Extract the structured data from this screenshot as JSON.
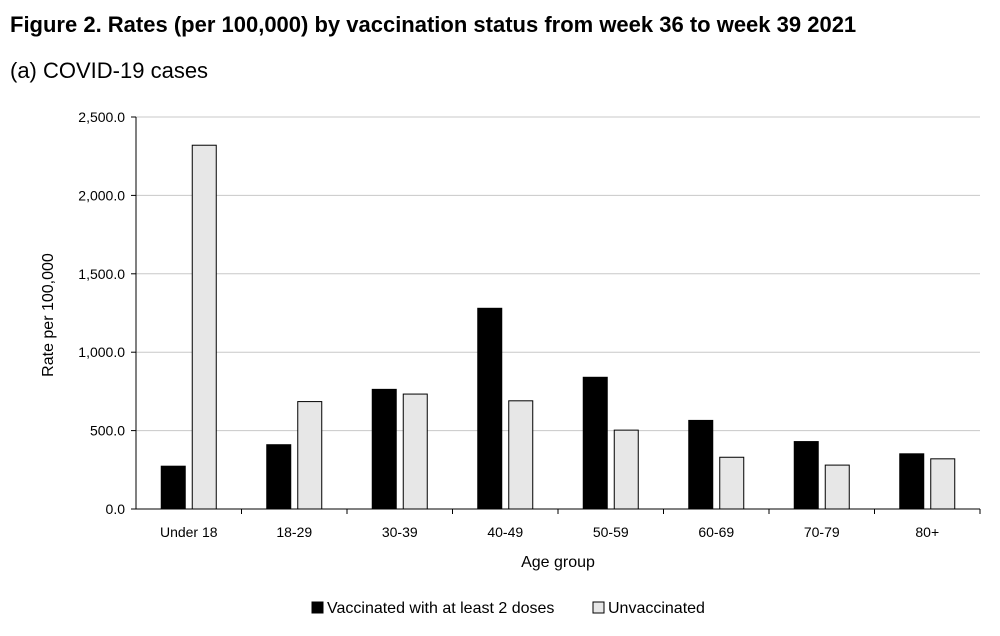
{
  "figure": {
    "title": "Figure 2. Rates (per 100,000) by vaccination status from week 36 to week 39 2021",
    "subtitle": "(a) COVID-19 cases"
  },
  "chart_data": {
    "type": "bar",
    "title": "Figure 2. Rates (per 100,000) by vaccination status from week 36 to week 39 2021",
    "subtitle": "(a) COVID-19 cases",
    "xlabel": "Age group",
    "ylabel": "Rate per 100,000",
    "ylim": [
      0,
      2500
    ],
    "yticks": [
      0,
      500,
      1000,
      1500,
      2000,
      2500
    ],
    "ytick_labels": [
      "0.0",
      "500.0",
      "1,000.0",
      "1,500.0",
      "2,000.0",
      "2,500.0"
    ],
    "grid": true,
    "legend_position": "bottom",
    "categories": [
      "Under 18",
      "18-29",
      "30-39",
      "40-49",
      "50-59",
      "60-69",
      "70-79",
      "80+"
    ],
    "series": [
      {
        "name": "Vaccinated with at least 2 doses",
        "color": "#000000",
        "values": [
          273,
          410,
          763,
          1280,
          840,
          565,
          430,
          352
        ]
      },
      {
        "name": "Unvaccinated",
        "color": "#e7e7e7",
        "values": [
          2320,
          685,
          733,
          690,
          503,
          330,
          280,
          320
        ]
      }
    ]
  }
}
